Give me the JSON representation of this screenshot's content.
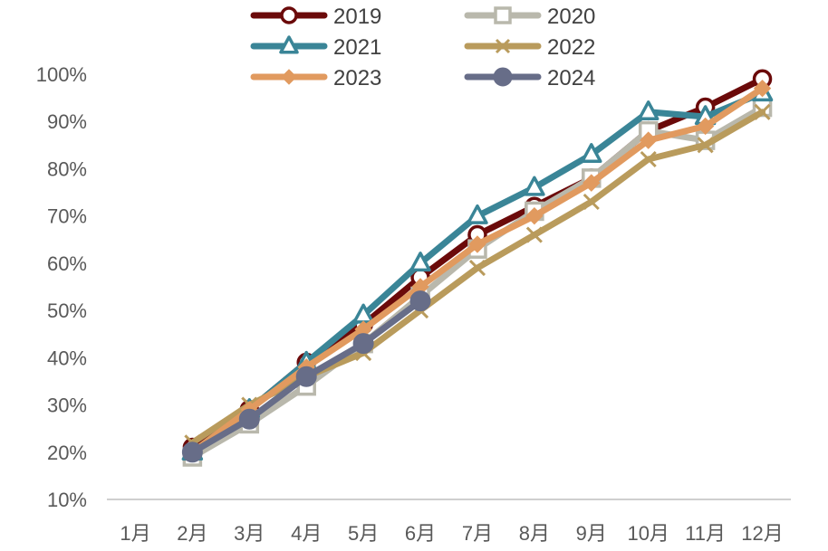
{
  "chart_data": {
    "type": "line",
    "title": "",
    "xlabel": "",
    "ylabel": "",
    "categories": [
      "1月",
      "2月",
      "3月",
      "4月",
      "5月",
      "6月",
      "7月",
      "8月",
      "9月",
      "10月",
      "11月",
      "12月"
    ],
    "ylim": [
      10,
      100
    ],
    "yticks": [
      10,
      20,
      30,
      40,
      50,
      60,
      70,
      80,
      90,
      100
    ],
    "ytick_labels": [
      "10%",
      "20%",
      "30%",
      "40%",
      "50%",
      "60%",
      "70%",
      "80%",
      "90%",
      "100%"
    ],
    "grid": false,
    "legend_position": "top",
    "series": [
      {
        "name": "2019",
        "color": "#6b0a0a",
        "marker": "circle-open",
        "values": [
          null,
          21,
          29,
          39,
          47,
          57,
          66,
          72,
          78,
          88,
          93,
          99
        ]
      },
      {
        "name": "2020",
        "color": "#b9b8ac",
        "marker": "square-open",
        "values": [
          null,
          19,
          26,
          34,
          43,
          53,
          63,
          71,
          78,
          88,
          86,
          93
        ]
      },
      {
        "name": "2021",
        "color": "#3a8597",
        "marker": "triangle-open",
        "values": [
          null,
          20,
          29,
          39,
          49,
          60,
          70,
          76,
          83,
          92,
          91,
          96
        ]
      },
      {
        "name": "2022",
        "color": "#b99b5c",
        "marker": "x",
        "values": [
          null,
          22,
          30,
          36,
          41,
          50,
          59,
          66,
          73,
          82,
          85,
          92
        ]
      },
      {
        "name": "2023",
        "color": "#e19a5f",
        "marker": "diamond",
        "values": [
          null,
          20,
          29,
          38,
          46,
          55,
          64,
          70,
          77,
          86,
          89,
          97
        ]
      },
      {
        "name": "2024",
        "color": "#676d88",
        "marker": "circle",
        "values": [
          null,
          20,
          27,
          36,
          43,
          52,
          null,
          null,
          null,
          null,
          null,
          null
        ]
      }
    ]
  }
}
